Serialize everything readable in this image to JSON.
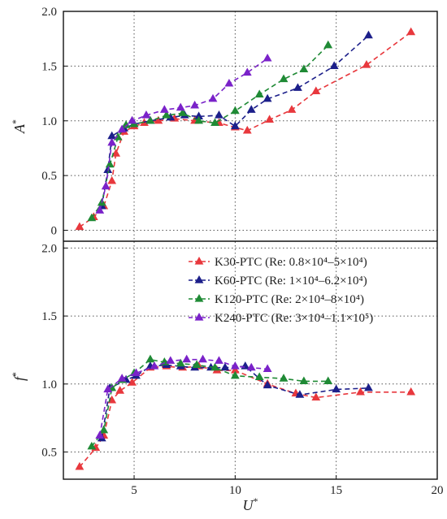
{
  "chart_data": [
    {
      "type": "line",
      "panel": "top",
      "xlabel": "",
      "ylabel": "A*",
      "xlim": [
        1.5,
        20
      ],
      "ylim": [
        -0.1,
        2.0
      ],
      "yticks": [
        0,
        0.5,
        1.0,
        1.5,
        2.0
      ],
      "ytick_labels": [
        "0",
        "0.5",
        "1.0",
        "1.5",
        "2.0"
      ],
      "grid": true,
      "series": [
        {
          "name": "K30-PTC",
          "color": "#e8383d",
          "points": [
            [
              2.3,
              0.03
            ],
            [
              3.0,
              0.12
            ],
            [
              3.5,
              0.22
            ],
            [
              3.9,
              0.45
            ],
            [
              4.1,
              0.7
            ],
            [
              4.5,
              0.9
            ],
            [
              5.0,
              0.95
            ],
            [
              5.5,
              0.98
            ],
            [
              6.2,
              1.0
            ],
            [
              7.0,
              1.02
            ],
            [
              8.0,
              1.0
            ],
            [
              9.2,
              0.98
            ],
            [
              10.0,
              0.94
            ],
            [
              10.6,
              0.91
            ],
            [
              11.7,
              1.01
            ],
            [
              12.8,
              1.1
            ],
            [
              14.0,
              1.27
            ],
            [
              16.5,
              1.51
            ],
            [
              18.7,
              1.81
            ]
          ]
        },
        {
          "name": "K60-PTC",
          "color": "#1c1f8a",
          "points": [
            [
              3.4,
              0.22
            ],
            [
              3.7,
              0.55
            ],
            [
              3.9,
              0.86
            ],
            [
              4.5,
              0.93
            ],
            [
              5.0,
              0.97
            ],
            [
              5.8,
              1.0
            ],
            [
              6.8,
              1.03
            ],
            [
              7.5,
              1.05
            ],
            [
              8.2,
              1.04
            ],
            [
              9.2,
              1.05
            ],
            [
              10.0,
              0.95
            ],
            [
              10.8,
              1.1
            ],
            [
              11.6,
              1.2
            ],
            [
              13.1,
              1.3
            ],
            [
              14.9,
              1.5
            ],
            [
              16.6,
              1.78
            ]
          ]
        },
        {
          "name": "K120-PTC",
          "color": "#1f8a35",
          "points": [
            [
              2.9,
              0.11
            ],
            [
              3.4,
              0.25
            ],
            [
              3.8,
              0.6
            ],
            [
              4.2,
              0.85
            ],
            [
              4.6,
              0.96
            ],
            [
              5.0,
              0.97
            ],
            [
              5.8,
              1.0
            ],
            [
              6.6,
              1.05
            ],
            [
              7.4,
              1.07
            ],
            [
              8.2,
              1.0
            ],
            [
              9.0,
              0.98
            ],
            [
              10.0,
              1.09
            ],
            [
              11.2,
              1.24
            ],
            [
              12.4,
              1.38
            ],
            [
              13.4,
              1.47
            ],
            [
              14.6,
              1.69
            ]
          ]
        },
        {
          "name": "K240-PTC",
          "color": "#7a22c9",
          "points": [
            [
              3.3,
              0.18
            ],
            [
              3.6,
              0.4
            ],
            [
              3.9,
              0.8
            ],
            [
              4.4,
              0.92
            ],
            [
              4.9,
              1.0
            ],
            [
              5.6,
              1.05
            ],
            [
              6.5,
              1.1
            ],
            [
              7.3,
              1.12
            ],
            [
              8.0,
              1.14
            ],
            [
              8.9,
              1.2
            ],
            [
              9.7,
              1.34
            ],
            [
              10.6,
              1.44
            ],
            [
              11.6,
              1.57
            ]
          ]
        }
      ]
    },
    {
      "type": "line",
      "panel": "bottom",
      "xlabel": "U*",
      "ylabel": "f*",
      "xlim": [
        1.5,
        20
      ],
      "ylim": [
        0.3,
        2.05
      ],
      "xticks": [
        5,
        10,
        15,
        20
      ],
      "xtick_labels": [
        "5",
        "10",
        "15",
        "20"
      ],
      "yticks": [
        0.5,
        1.0,
        1.5,
        2.0
      ],
      "ytick_labels": [
        "0.5",
        "1.0",
        "1.5",
        "2.0"
      ],
      "grid": true,
      "legend_position": "top-right",
      "series": [
        {
          "name": "K30-PTC",
          "legend_label": "K30-PTC (Re: 0.8×10⁴–5×10⁴)",
          "color": "#e8383d",
          "points": [
            [
              2.3,
              0.39
            ],
            [
              3.1,
              0.53
            ],
            [
              3.5,
              0.62
            ],
            [
              3.9,
              0.88
            ],
            [
              4.3,
              0.95
            ],
            [
              4.9,
              1.01
            ],
            [
              5.8,
              1.12
            ],
            [
              6.6,
              1.13
            ],
            [
              7.4,
              1.12
            ],
            [
              8.2,
              1.13
            ],
            [
              9.1,
              1.1
            ],
            [
              10.0,
              1.1
            ],
            [
              11.6,
              1.0
            ],
            [
              13.0,
              0.93
            ],
            [
              14.0,
              0.9
            ],
            [
              16.2,
              0.94
            ],
            [
              18.7,
              0.94
            ]
          ]
        },
        {
          "name": "K60-PTC",
          "legend_label": "K60-PTC (Re: 1×10⁴–6.2×10⁴)",
          "color": "#1c1f8a",
          "points": [
            [
              3.4,
              0.6
            ],
            [
              3.8,
              0.97
            ],
            [
              4.6,
              1.03
            ],
            [
              5.1,
              1.06
            ],
            [
              5.8,
              1.13
            ],
            [
              6.6,
              1.14
            ],
            [
              7.3,
              1.13
            ],
            [
              8.0,
              1.12
            ],
            [
              8.8,
              1.12
            ],
            [
              9.5,
              1.12
            ],
            [
              10.5,
              1.13
            ],
            [
              11.6,
              0.99
            ],
            [
              13.2,
              0.92
            ],
            [
              15.0,
              0.96
            ],
            [
              16.6,
              0.97
            ]
          ]
        },
        {
          "name": "K120-PTC",
          "legend_label": "K120-PTC (Re: 2×10⁴–8×10⁴)",
          "color": "#1f8a35",
          "points": [
            [
              2.9,
              0.54
            ],
            [
              3.5,
              0.66
            ],
            [
              3.9,
              0.97
            ],
            [
              4.4,
              1.03
            ],
            [
              5.0,
              1.08
            ],
            [
              5.8,
              1.18
            ],
            [
              6.5,
              1.16
            ],
            [
              7.3,
              1.15
            ],
            [
              8.1,
              1.14
            ],
            [
              9.0,
              1.12
            ],
            [
              10.0,
              1.06
            ],
            [
              11.2,
              1.05
            ],
            [
              12.4,
              1.04
            ],
            [
              13.4,
              1.02
            ],
            [
              14.6,
              1.02
            ]
          ]
        },
        {
          "name": "K240-PTC",
          "legend_label": "K240-PTC (Re: 3×10⁴–1.1×10⁵)",
          "color": "#7a22c9",
          "points": [
            [
              3.3,
              0.62
            ],
            [
              3.7,
              0.96
            ],
            [
              4.4,
              1.04
            ],
            [
              5.1,
              1.08
            ],
            [
              6.0,
              1.13
            ],
            [
              6.8,
              1.17
            ],
            [
              7.6,
              1.18
            ],
            [
              8.4,
              1.18
            ],
            [
              9.2,
              1.17
            ],
            [
              10.0,
              1.13
            ],
            [
              10.8,
              1.12
            ],
            [
              11.6,
              1.11
            ]
          ]
        }
      ]
    }
  ]
}
